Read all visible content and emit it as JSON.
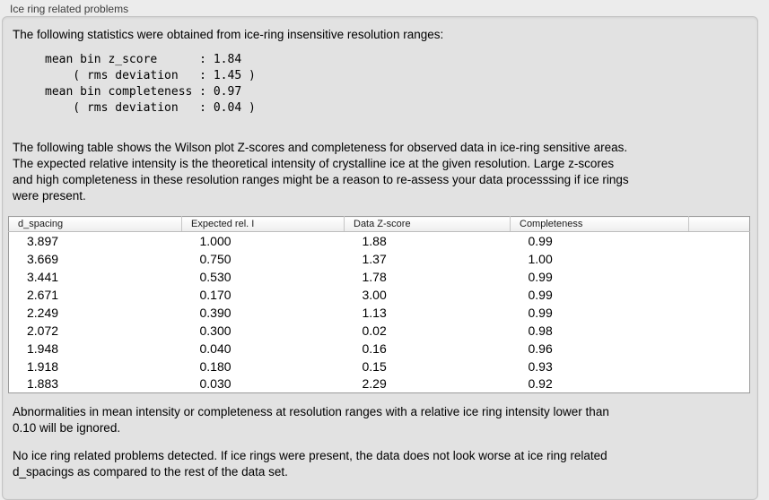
{
  "group": {
    "label": "Ice ring related problems"
  },
  "colors": {
    "outer_background": "#ececec",
    "panel_background": "#e2e2e2",
    "panel_border": "#c4c4c4",
    "table_background": "#ffffff",
    "table_border": "#9a9a9a",
    "header_gradient_top": "#ffffff",
    "header_gradient_bottom": "#ededed",
    "header_separator": "#c6c6c6",
    "text": "#000000"
  },
  "intro": {
    "text": "The following statistics were obtained from ice-ring insensitive resolution ranges:"
  },
  "stats_block": {
    "text": "mean bin z_score      : 1.84\n    ( rms deviation   : 1.45 )\nmean bin completeness : 0.97\n    ( rms deviation   : 0.04 )",
    "mean_bin_z_score": "1.84",
    "z_score_rms_deviation": "1.45",
    "mean_bin_completeness": "0.97",
    "completeness_rms_deviation": "0.04"
  },
  "description": {
    "text": "The following table shows the Wilson plot Z-scores and completeness for observed data in ice-ring sensitive areas.\nThe expected relative intensity is the theoretical intensity of crystalline ice at the given resolution. Large z-scores\nand high completeness in these resolution ranges might be a reason to re-assess your data processsing if ice rings\nwere present."
  },
  "table": {
    "columns": [
      "d_spacing",
      "Expected rel. I",
      "Data Z-score",
      "Completeness"
    ],
    "rows": [
      [
        "3.897",
        "1.000",
        "1.88",
        "0.99"
      ],
      [
        "3.669",
        "0.750",
        "1.37",
        "1.00"
      ],
      [
        "3.441",
        "0.530",
        "1.78",
        "0.99"
      ],
      [
        "2.671",
        "0.170",
        "3.00",
        "0.99"
      ],
      [
        "2.249",
        "0.390",
        "1.13",
        "0.99"
      ],
      [
        "2.072",
        "0.300",
        "0.02",
        "0.98"
      ],
      [
        "1.948",
        "0.040",
        "0.16",
        "0.96"
      ],
      [
        "1.918",
        "0.180",
        "0.15",
        "0.93"
      ],
      [
        "1.883",
        "0.030",
        "2.29",
        "0.92"
      ]
    ]
  },
  "footnote": {
    "text": "Abnormalities in mean intensity or completeness at resolution ranges with a relative ice ring intensity lower than\n0.10 will be ignored."
  },
  "conclusion": {
    "text": "No ice ring related problems detected. If ice rings were present, the data does not look worse at ice ring related\nd_spacings as compared to the rest of the data set."
  }
}
